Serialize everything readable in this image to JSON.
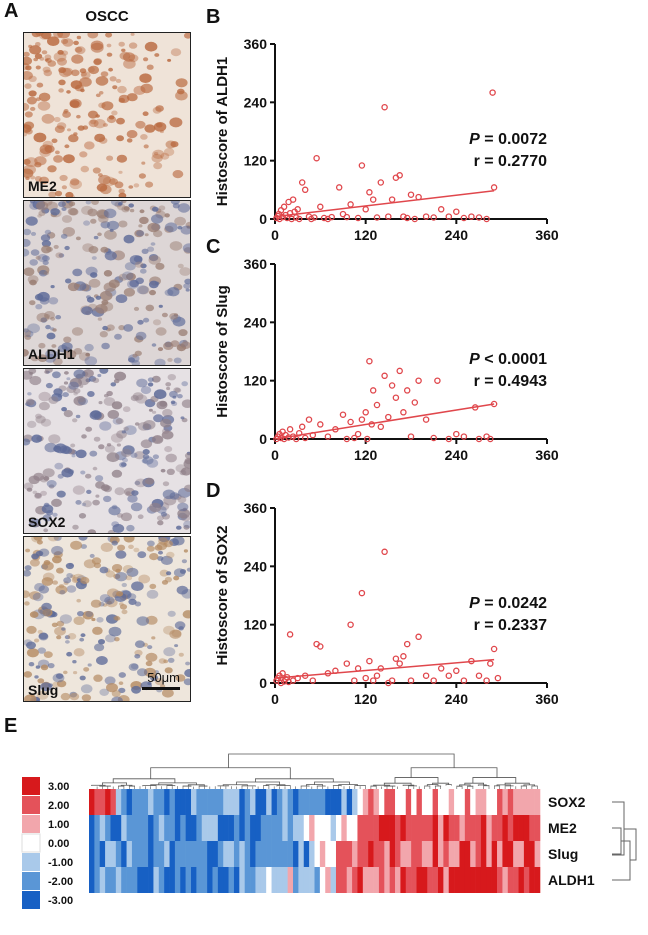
{
  "panels": {
    "A": "A",
    "B": "B",
    "C": "C",
    "D": "D",
    "E": "E"
  },
  "panel_a": {
    "title": "OSCC",
    "images": [
      {
        "label": "ME2",
        "tone": "#b9693f"
      },
      {
        "label": "ALDH1",
        "tone": "#9a7d72"
      },
      {
        "label": "SOX2",
        "tone": "#8f7f88"
      },
      {
        "label": "Slug",
        "tone": "#b48a62"
      }
    ],
    "scale_bar": "50μm"
  },
  "chart_data": [
    {
      "type": "scatter",
      "panel": "B",
      "ylabel": "Histoscore of ALDH1",
      "xlim": [
        0,
        360
      ],
      "ylim": [
        0,
        360
      ],
      "xticks": [
        "0",
        "120",
        "240",
        "360"
      ],
      "yticks": [
        "0",
        "120",
        "240",
        "360"
      ],
      "stat_p_label": "P",
      "stat_p_value": " = 0.0072",
      "stat_r": "r = 0.2770",
      "fit": {
        "x": [
          0,
          290
        ],
        "y": [
          5,
          58
        ]
      },
      "points": [
        [
          2,
          2
        ],
        [
          4,
          6
        ],
        [
          5,
          10
        ],
        [
          6,
          0
        ],
        [
          8,
          18
        ],
        [
          10,
          4
        ],
        [
          12,
          25
        ],
        [
          14,
          8
        ],
        [
          16,
          2
        ],
        [
          18,
          35
        ],
        [
          20,
          12
        ],
        [
          22,
          0
        ],
        [
          24,
          40
        ],
        [
          26,
          15
        ],
        [
          28,
          3
        ],
        [
          30,
          20
        ],
        [
          32,
          0
        ],
        [
          36,
          75
        ],
        [
          40,
          60
        ],
        [
          45,
          5
        ],
        [
          48,
          0
        ],
        [
          52,
          3
        ],
        [
          55,
          125
        ],
        [
          60,
          25
        ],
        [
          65,
          2
        ],
        [
          70,
          0
        ],
        [
          75,
          4
        ],
        [
          85,
          65
        ],
        [
          90,
          10
        ],
        [
          95,
          4
        ],
        [
          100,
          30
        ],
        [
          110,
          2
        ],
        [
          115,
          110
        ],
        [
          120,
          20
        ],
        [
          125,
          55
        ],
        [
          130,
          40
        ],
        [
          135,
          3
        ],
        [
          140,
          75
        ],
        [
          145,
          230
        ],
        [
          150,
          5
        ],
        [
          155,
          40
        ],
        [
          160,
          85
        ],
        [
          165,
          90
        ],
        [
          170,
          5
        ],
        [
          175,
          2
        ],
        [
          180,
          50
        ],
        [
          185,
          0
        ],
        [
          190,
          45
        ],
        [
          200,
          5
        ],
        [
          210,
          3
        ],
        [
          220,
          20
        ],
        [
          230,
          5
        ],
        [
          240,
          15
        ],
        [
          250,
          2
        ],
        [
          260,
          5
        ],
        [
          270,
          3
        ],
        [
          280,
          0
        ],
        [
          288,
          260
        ],
        [
          290,
          65
        ]
      ]
    },
    {
      "type": "scatter",
      "panel": "C",
      "ylabel": "Histoscore of Slug",
      "xlim": [
        0,
        360
      ],
      "ylim": [
        0,
        360
      ],
      "xticks": [
        "0",
        "120",
        "240",
        "360"
      ],
      "yticks": [
        "0",
        "120",
        "240",
        "360"
      ],
      "stat_p_label": "P",
      "stat_p_value": " < 0.0001",
      "stat_r": "r = 0.4943",
      "fit": {
        "x": [
          0,
          290
        ],
        "y": [
          0,
          72
        ]
      },
      "points": [
        [
          2,
          0
        ],
        [
          4,
          5
        ],
        [
          6,
          10
        ],
        [
          8,
          2
        ],
        [
          10,
          15
        ],
        [
          12,
          0
        ],
        [
          14,
          8
        ],
        [
          18,
          3
        ],
        [
          20,
          20
        ],
        [
          24,
          5
        ],
        [
          28,
          0
        ],
        [
          32,
          12
        ],
        [
          36,
          25
        ],
        [
          40,
          2
        ],
        [
          45,
          40
        ],
        [
          50,
          8
        ],
        [
          60,
          30
        ],
        [
          70,
          5
        ],
        [
          80,
          20
        ],
        [
          90,
          50
        ],
        [
          95,
          0
        ],
        [
          100,
          35
        ],
        [
          105,
          2
        ],
        [
          110,
          10
        ],
        [
          115,
          40
        ],
        [
          120,
          55
        ],
        [
          122,
          0
        ],
        [
          125,
          160
        ],
        [
          128,
          30
        ],
        [
          130,
          100
        ],
        [
          135,
          70
        ],
        [
          140,
          25
        ],
        [
          145,
          130
        ],
        [
          150,
          45
        ],
        [
          155,
          110
        ],
        [
          160,
          85
        ],
        [
          165,
          140
        ],
        [
          170,
          55
        ],
        [
          175,
          100
        ],
        [
          180,
          5
        ],
        [
          185,
          75
        ],
        [
          190,
          120
        ],
        [
          200,
          40
        ],
        [
          210,
          2
        ],
        [
          215,
          120
        ],
        [
          230,
          0
        ],
        [
          240,
          10
        ],
        [
          250,
          5
        ],
        [
          265,
          65
        ],
        [
          270,
          0
        ],
        [
          280,
          5
        ],
        [
          285,
          0
        ],
        [
          290,
          72
        ]
      ]
    },
    {
      "type": "scatter",
      "panel": "D",
      "ylabel": "Histoscore of SOX2",
      "xlim": [
        0,
        360
      ],
      "ylim": [
        0,
        360
      ],
      "xticks": [
        "0",
        "120",
        "240",
        "360"
      ],
      "yticks": [
        "0",
        "120",
        "240",
        "360"
      ],
      "stat_p_label": "P",
      "stat_p_value": " = 0.0242",
      "stat_r": "r = 0.2337",
      "fit": {
        "x": [
          0,
          290
        ],
        "y": [
          10,
          48
        ]
      },
      "points": [
        [
          2,
          5
        ],
        [
          4,
          10
        ],
        [
          6,
          15
        ],
        [
          8,
          0
        ],
        [
          10,
          20
        ],
        [
          12,
          3
        ],
        [
          14,
          8
        ],
        [
          16,
          12
        ],
        [
          18,
          2
        ],
        [
          20,
          100
        ],
        [
          24,
          5
        ],
        [
          30,
          10
        ],
        [
          40,
          15
        ],
        [
          50,
          5
        ],
        [
          55,
          80
        ],
        [
          60,
          75
        ],
        [
          70,
          20
        ],
        [
          80,
          25
        ],
        [
          95,
          40
        ],
        [
          100,
          120
        ],
        [
          105,
          5
        ],
        [
          110,
          30
        ],
        [
          115,
          185
        ],
        [
          120,
          10
        ],
        [
          125,
          45
        ],
        [
          130,
          5
        ],
        [
          135,
          15
        ],
        [
          140,
          30
        ],
        [
          145,
          270
        ],
        [
          150,
          0
        ],
        [
          155,
          5
        ],
        [
          160,
          50
        ],
        [
          165,
          40
        ],
        [
          170,
          55
        ],
        [
          175,
          80
        ],
        [
          180,
          5
        ],
        [
          190,
          95
        ],
        [
          200,
          15
        ],
        [
          210,
          5
        ],
        [
          220,
          30
        ],
        [
          230,
          15
        ],
        [
          240,
          25
        ],
        [
          250,
          5
        ],
        [
          260,
          45
        ],
        [
          270,
          15
        ],
        [
          280,
          5
        ],
        [
          285,
          40
        ],
        [
          290,
          70
        ],
        [
          295,
          10
        ]
      ]
    }
  ],
  "heatmap": {
    "rows": [
      "SOX2",
      "ME2",
      "Slug",
      "ALDH1"
    ],
    "legend": [
      "3.00",
      "2.00",
      "1.00",
      "0.00",
      "-1.00",
      "-2.00",
      "-3.00"
    ],
    "legend_colors": [
      "#d7191c",
      "#e4525a",
      "#f2a6ac",
      "#ffffff",
      "#a9c9ea",
      "#5a96d6",
      "#1760c4"
    ],
    "columns": 84
  }
}
